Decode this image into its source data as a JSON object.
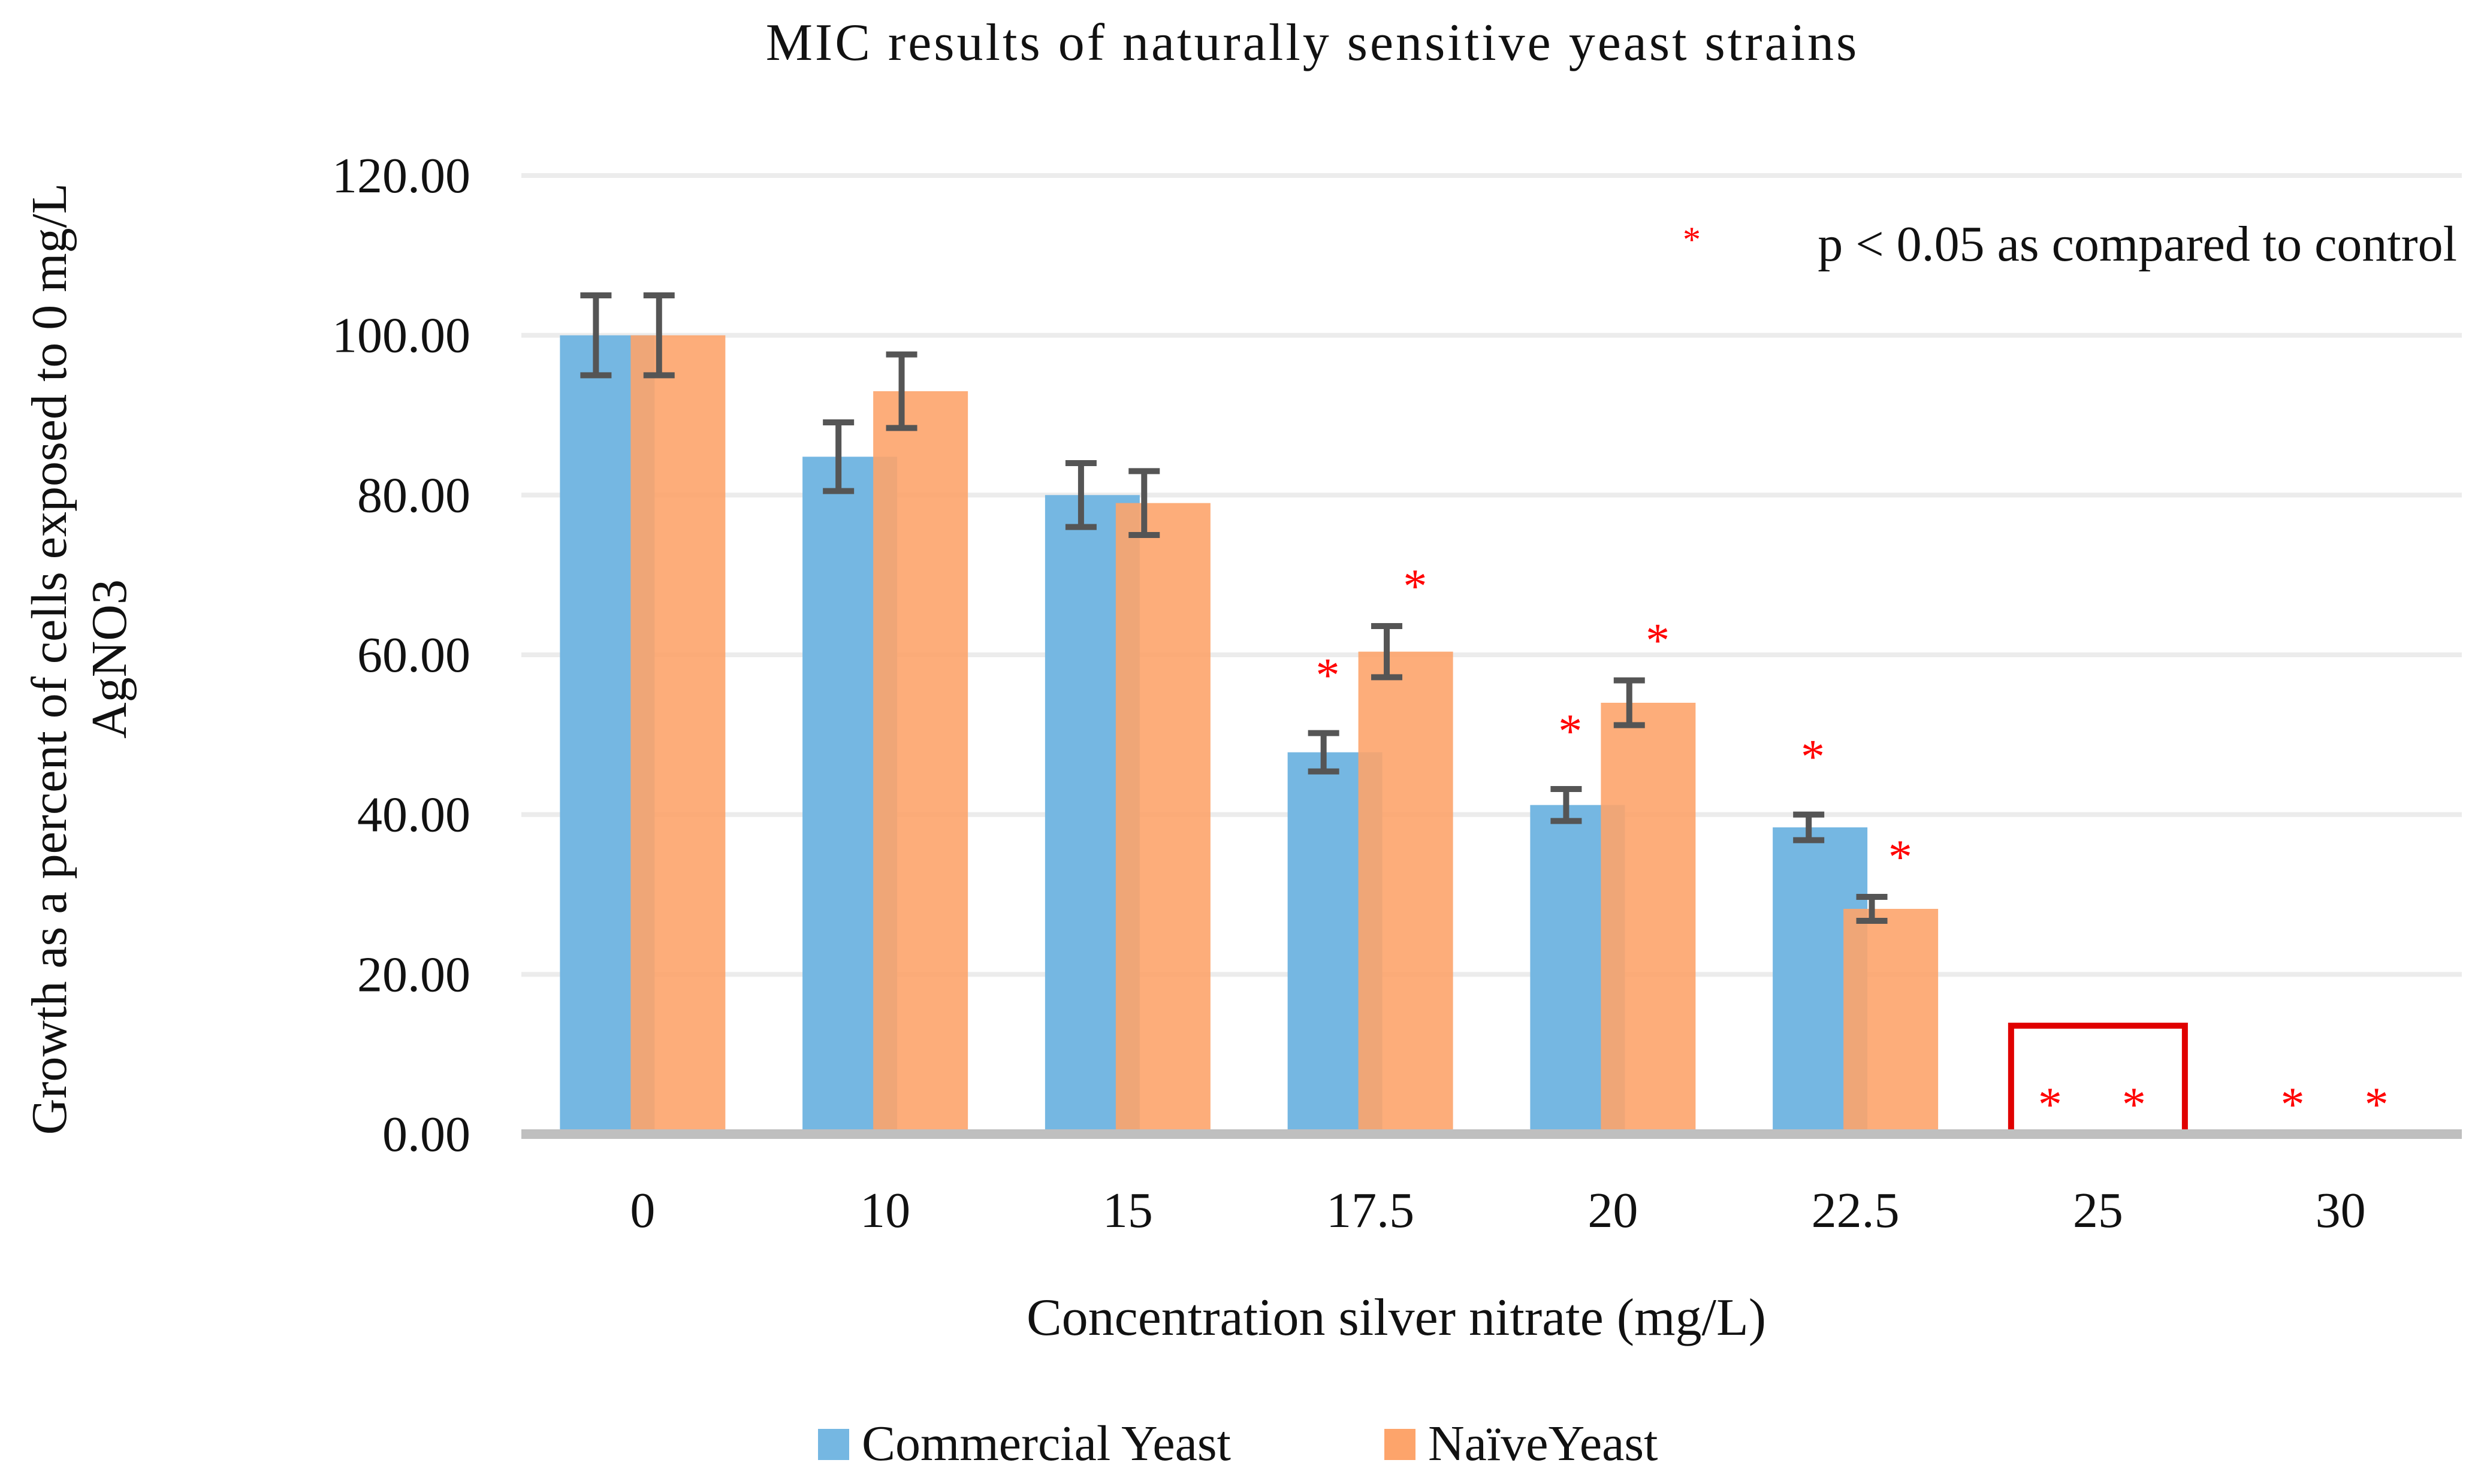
{
  "chart_data": {
    "type": "bar",
    "title": "MIC results of naturally sensitive yeast strains",
    "xlabel": "Concentration silver nitrate (mg/L)",
    "ylabel_lines": [
      "Growth as a percent of cells exposed to 0 mg/L",
      "AgNO3"
    ],
    "ylim": [
      0,
      120
    ],
    "yticks": [
      "0.00",
      "20.00",
      "40.00",
      "60.00",
      "80.00",
      "100.00",
      "120.00"
    ],
    "grid": true,
    "categories": [
      "0",
      "10",
      "15",
      "17.5",
      "20",
      "22.5",
      "25",
      "30"
    ],
    "series": [
      {
        "name": "Commercial Yeast",
        "color": "#75b7e2",
        "values": [
          100,
          84.8,
          80,
          47.8,
          41.2,
          38.4,
          0,
          0
        ],
        "errors": [
          5,
          4.3,
          4,
          2.4,
          2,
          1.6,
          0,
          0
        ],
        "significant": [
          false,
          false,
          false,
          true,
          true,
          true,
          true,
          true
        ]
      },
      {
        "name": "NaïveYeast",
        "color": "#fda46b",
        "values": [
          100,
          93,
          79,
          60.4,
          54,
          28.2,
          0,
          0
        ],
        "errors": [
          5,
          4.6,
          4,
          3.2,
          2.8,
          1.5,
          0,
          0
        ],
        "significant": [
          false,
          false,
          false,
          true,
          true,
          true,
          true,
          true
        ]
      }
    ],
    "annotation": {
      "marker": "*",
      "text": "p < 0.05 as compared to control",
      "marker_color": "#ff0000"
    },
    "highlight_category": "25",
    "highlight_color": "#e00000",
    "legend": "bottom"
  }
}
